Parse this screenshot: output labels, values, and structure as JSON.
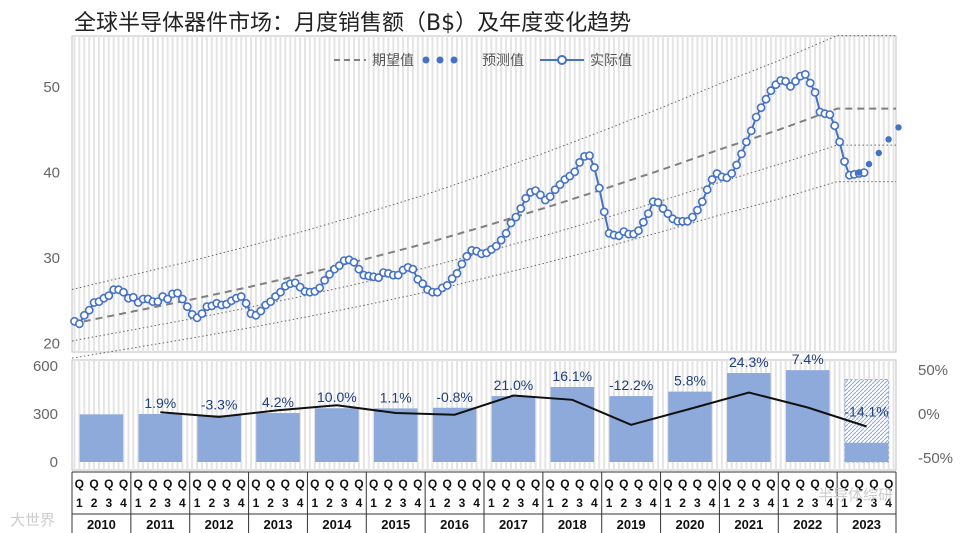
{
  "title": "全球半导体器件市场：月度销售额（B$）及年度变化趋势",
  "legend": [
    "期望值",
    "预测值",
    "实际值"
  ],
  "colors": {
    "actual": "#4472c4",
    "forecast": "#4472c4",
    "expected": "#808080",
    "bar": "#8eaadb",
    "growth_line": "#111111"
  },
  "watermark_left": "大世界",
  "watermark_right": "半导体综研",
  "chart_data": [
    {
      "type": "line",
      "title": "全球半导体器件市场：月度销售额（B$）及年度变化趋势",
      "ylim": [
        19,
        56
      ],
      "yticks": [
        20,
        30,
        40,
        50
      ],
      "x_start": "2010-01",
      "grid": "vertical monthly bands",
      "legend_position": "top-center",
      "series": [
        {
          "name": "实际值",
          "style": "line with hollow circle markers",
          "values": [
            22.6,
            22.3,
            23.3,
            23.9,
            24.8,
            24.9,
            25.3,
            25.6,
            26.3,
            26.3,
            26.0,
            25.3,
            25.4,
            24.8,
            25.2,
            25.2,
            24.9,
            24.9,
            25.5,
            25.2,
            25.8,
            25.9,
            25.2,
            24.3,
            23.4,
            23.0,
            23.5,
            24.3,
            24.4,
            24.7,
            24.5,
            24.6,
            25.0,
            25.3,
            25.5,
            24.7,
            23.5,
            23.3,
            23.8,
            24.5,
            24.9,
            25.5,
            26.0,
            26.7,
            27.0,
            27.1,
            26.6,
            26.1,
            26.0,
            26.1,
            26.5,
            27.4,
            28.1,
            28.7,
            29.1,
            29.7,
            29.8,
            29.5,
            28.7,
            28.0,
            27.9,
            27.8,
            27.7,
            28.3,
            28.2,
            28.0,
            28.0,
            28.6,
            28.9,
            28.7,
            27.5,
            27.0,
            26.3,
            26.0,
            26.0,
            26.5,
            26.8,
            27.6,
            28.2,
            29.3,
            30.2,
            30.9,
            30.8,
            30.5,
            30.6,
            31.0,
            31.4,
            32.1,
            32.9,
            34.1,
            34.8,
            35.8,
            37.0,
            37.7,
            37.9,
            37.4,
            36.8,
            37.2,
            38.0,
            38.6,
            39.2,
            39.6,
            40.1,
            41.2,
            41.9,
            42.0,
            40.6,
            38.2,
            35.4,
            32.9,
            32.7,
            32.6,
            33.1,
            32.8,
            32.8,
            33.2,
            34.2,
            35.2,
            36.6,
            36.5,
            35.8,
            35.2,
            34.6,
            34.3,
            34.3,
            34.3,
            34.8,
            35.6,
            36.6,
            38.0,
            39.2,
            39.9,
            39.5,
            39.4,
            39.9,
            40.9,
            42.2,
            43.6,
            44.9,
            46.5,
            47.6,
            48.6,
            49.6,
            50.3,
            50.8,
            50.7,
            50.1,
            50.7,
            51.3,
            51.5,
            50.5,
            49.4,
            47.1,
            46.9,
            46.8,
            45.5,
            43.6,
            41.3,
            39.7,
            39.8,
            39.9,
            40.0
          ]
        },
        {
          "name": "预测值",
          "style": "dotted filled markers",
          "x_start_index": 160,
          "values": [
            40.0,
            41.0,
            42.3,
            43.9,
            45.3
          ]
        },
        {
          "name": "期望值",
          "style": "dashed trend line",
          "values": [
            22.3,
            23.7,
            25.1,
            26.6,
            28.2,
            29.9,
            31.7,
            33.7,
            35.8,
            38.0,
            40.3,
            42.7,
            45.0,
            47.5
          ]
        }
      ]
    },
    {
      "type": "bar",
      "categories": [
        "2010",
        "2011",
        "2012",
        "2013",
        "2014",
        "2015",
        "2016",
        "2017",
        "2018",
        "2019",
        "2020",
        "2021",
        "2022",
        "2023"
      ],
      "ylim": [
        0,
        600
      ],
      "yticks": [
        0,
        300,
        600
      ],
      "y2lim": [
        -50,
        50
      ],
      "y2ticks": [
        "50%",
        "0%",
        "-50%"
      ],
      "quarter_labels": [
        "Q",
        "1",
        "2",
        "3",
        "4"
      ],
      "series": [
        {
          "name": "年度销售额",
          "values": [
            298,
            300,
            292,
            306,
            336,
            335,
            339,
            412,
            469,
            412,
            440,
            556,
            574,
            120
          ]
        },
        {
          "name": "年度变化",
          "values": [
            null,
            1.9,
            -3.3,
            4.2,
            10.0,
            1.1,
            -0.8,
            21.0,
            16.1,
            -12.2,
            5.8,
            24.3,
            7.4,
            -14.1
          ]
        }
      ],
      "growth_labels": [
        "",
        "1.9%",
        "-3.3%",
        "4.2%",
        "10.0%",
        "1.1%",
        "-0.8%",
        "21.0%",
        "16.1%",
        "-12.2%",
        "5.8%",
        "24.3%",
        "7.4%",
        "-14.1%"
      ],
      "projected_2023_total": 515
    }
  ]
}
